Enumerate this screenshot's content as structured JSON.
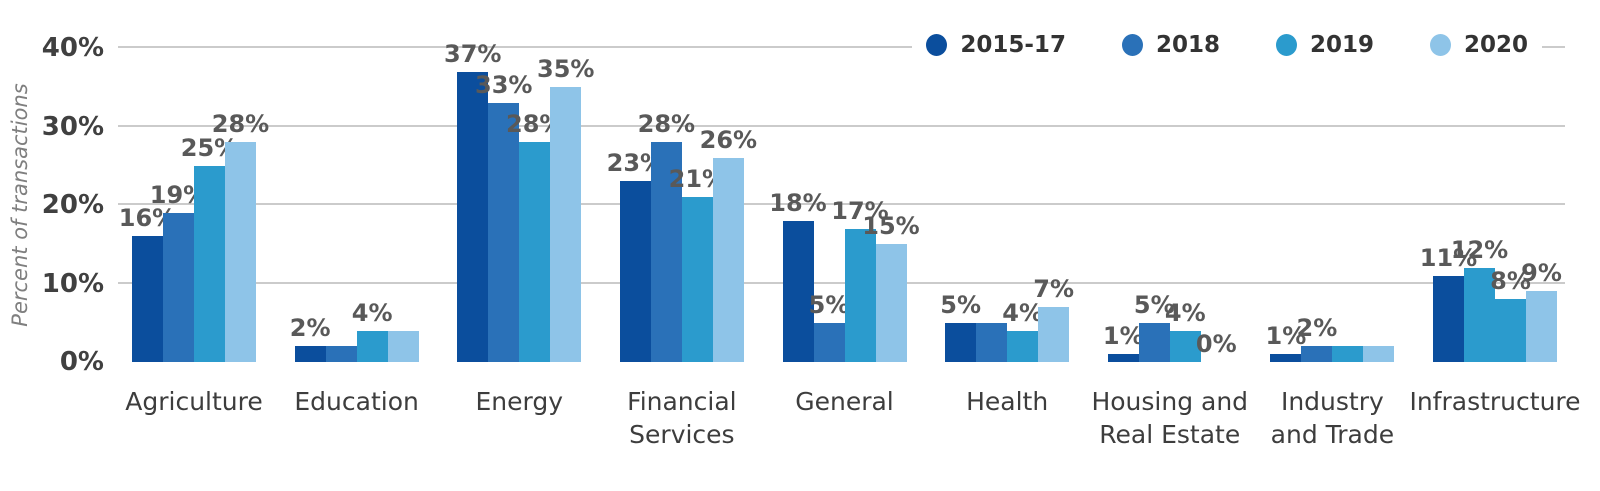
{
  "chart_data": {
    "type": "bar",
    "title": "",
    "xlabel": "",
    "ylabel": "Percent of transactions",
    "ylim": [
      0,
      40
    ],
    "ytick_labels": [
      "0%",
      "10%",
      "20%",
      "30%",
      "40%"
    ],
    "ytick_values": [
      0,
      10,
      20,
      30,
      40
    ],
    "grid": "horizontal gridlines at 10/20/30/40, no x-axis line",
    "legend_position": "top-right",
    "categories": [
      "Agriculture",
      "Education",
      "Energy",
      "Financial\nServices",
      "General",
      "Health",
      "Housing and\nReal Estate",
      "Industry\nand Trade",
      "Infrastructure"
    ],
    "series": [
      {
        "name": "2015-17",
        "color": "#0b4e9d",
        "values": [
          16,
          2,
          37,
          23,
          18,
          5,
          1,
          1,
          11
        ]
      },
      {
        "name": "2018",
        "color": "#2a71b8",
        "values": [
          19,
          2,
          33,
          28,
          5,
          5,
          5,
          2,
          12
        ]
      },
      {
        "name": "2019",
        "color": "#2b9bcd",
        "values": [
          25,
          4,
          28,
          21,
          17,
          4,
          4,
          2,
          8
        ]
      },
      {
        "name": "2020",
        "color": "#8ec4e8",
        "values": [
          28,
          4,
          35,
          26,
          15,
          7,
          0,
          2,
          9
        ]
      }
    ],
    "bar_labels": [
      [
        "16%",
        "19%",
        "25%",
        "28%"
      ],
      [
        "2%",
        "",
        "4%",
        ""
      ],
      [
        "37%",
        "33%",
        "28%",
        "35%"
      ],
      [
        "23%",
        "28%",
        "21%",
        "26%"
      ],
      [
        "18%",
        "5%",
        "17%",
        "15%"
      ],
      [
        "5%",
        "",
        "4%",
        "7%"
      ],
      [
        "1%",
        "5%",
        "4%",
        "0%"
      ],
      [
        "1%",
        "2%",
        "",
        ""
      ],
      [
        "11%",
        "12%",
        "8%",
        "9%"
      ]
    ],
    "bar_color_exceptions": [
      {
        "category_index": 8,
        "series_index": 1,
        "color": "#2b9bcd"
      }
    ],
    "colors": {
      "gridline": "#cbcbcb",
      "tick_text": "#404040",
      "bar_label_text": "#595959",
      "category_text": "#3d3d3d",
      "axis_title_text": "#7f7f7f",
      "legend_text": "#333333",
      "background": "#ffffff"
    }
  }
}
